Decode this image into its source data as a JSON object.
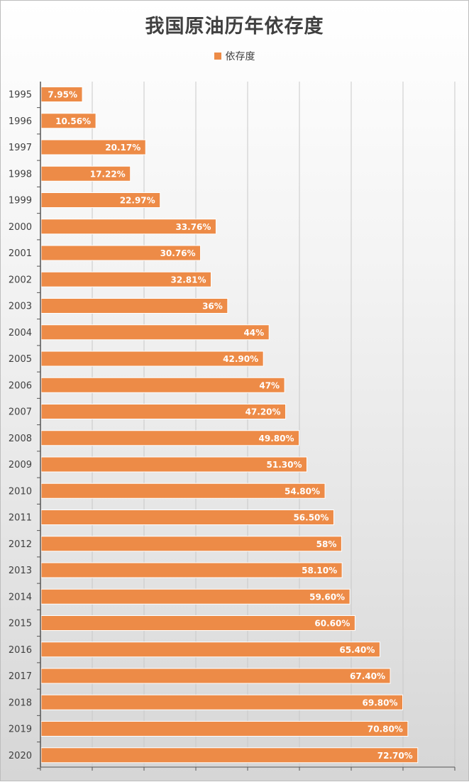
{
  "chart_data": {
    "type": "bar",
    "orientation": "horizontal",
    "title": "我国原油历年依存度",
    "legend": {
      "position": "top",
      "entries": [
        "依存度"
      ]
    },
    "categories": [
      "1995",
      "1996",
      "1997",
      "1998",
      "1999",
      "2000",
      "2001",
      "2002",
      "2003",
      "2004",
      "2005",
      "2006",
      "2007",
      "2008",
      "2009",
      "2010",
      "2011",
      "2012",
      "2013",
      "2014",
      "2015",
      "2016",
      "2017",
      "2018",
      "2019",
      "2020"
    ],
    "series": [
      {
        "name": "依存度",
        "values": [
          7.95,
          10.56,
          20.17,
          17.22,
          22.97,
          33.76,
          30.76,
          32.81,
          36,
          44,
          42.9,
          47,
          47.2,
          49.8,
          51.3,
          54.8,
          56.5,
          58,
          58.1,
          59.6,
          60.6,
          65.4,
          67.4,
          69.8,
          70.8,
          72.7
        ],
        "data_labels": [
          "7.95%",
          "10.56%",
          "20.17%",
          "17.22%",
          "22.97%",
          "33.76%",
          "30.76%",
          "32.81%",
          "36%",
          "44%",
          "42.90%",
          "47%",
          "47.20%",
          "49.80%",
          "51.30%",
          "54.80%",
          "56.50%",
          "58%",
          "58.10%",
          "59.60%",
          "60.60%",
          "65.40%",
          "67.40%",
          "69.80%",
          "70.80%",
          "72.70%"
        ]
      }
    ],
    "xlim": [
      0,
      80
    ],
    "grid": true,
    "colors": {
      "bar": "#ED8B47",
      "grid": "#c8c8c8",
      "axis": "#555555"
    }
  }
}
